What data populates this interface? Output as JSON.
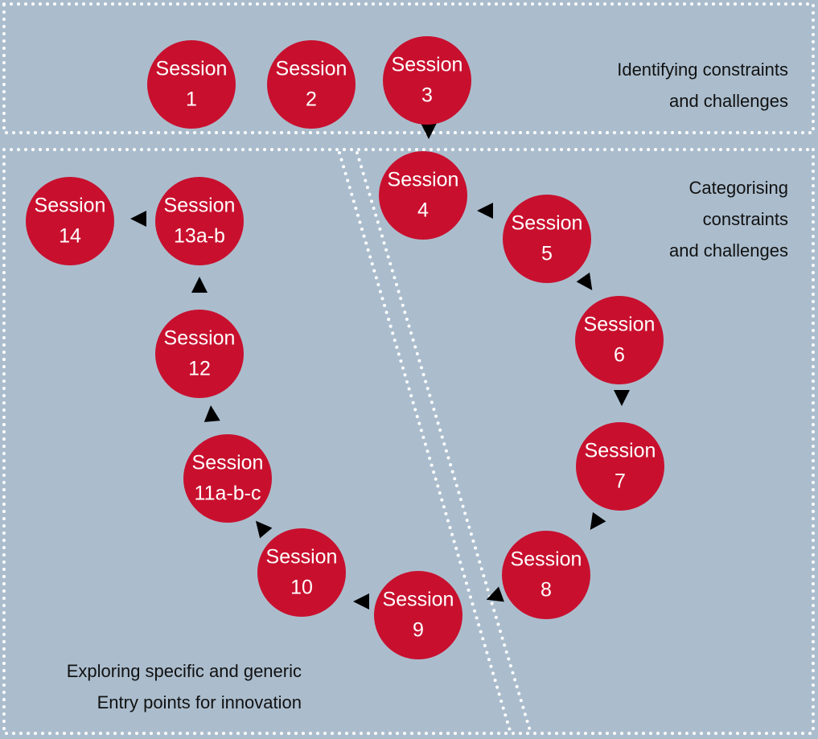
{
  "nodes": [
    {
      "label": "Session",
      "number": "1"
    },
    {
      "label": "Session",
      "number": "2"
    },
    {
      "label": "Session",
      "number": "3"
    },
    {
      "label": "Session",
      "number": "4"
    },
    {
      "label": "Session",
      "number": "5"
    },
    {
      "label": "Session",
      "number": "6"
    },
    {
      "label": "Session",
      "number": "7"
    },
    {
      "label": "Session",
      "number": "8"
    },
    {
      "label": "Session",
      "number": "9"
    },
    {
      "label": "Session",
      "number": "10"
    },
    {
      "label": "Session",
      "number": "11a-b-c"
    },
    {
      "label": "Session",
      "number": "12"
    },
    {
      "label": "Session",
      "number": "13a-b"
    },
    {
      "label": "Session",
      "number": "14"
    }
  ],
  "regions": [
    {
      "lines": [
        "Identifying constraints",
        "and challenges"
      ]
    },
    {
      "lines": [
        "Categorising",
        "constraints",
        "and challenges"
      ]
    },
    {
      "lines": [
        "Exploring specific and generic",
        "Entry points for innovation"
      ]
    }
  ]
}
